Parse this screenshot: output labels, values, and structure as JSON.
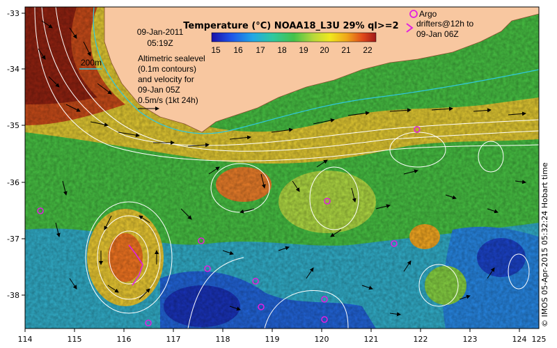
{
  "header": {
    "colorbar_title": "Temperature (°C) NOAA18_L3U 29% ql>=2",
    "colorbar_ticks": [
      "15",
      "16",
      "17",
      "18",
      "19",
      "20",
      "21",
      "22"
    ],
    "colorbar_colors": [
      "#1a10a8",
      "#1f55e8",
      "#22a7e6",
      "#2fc8a0",
      "#44c24a",
      "#b8d83a",
      "#f0e81e",
      "#f0a81a",
      "#e0481a",
      "#a01818"
    ]
  },
  "annotations": {
    "date": "09-Jan-2011",
    "time": "05:19Z",
    "contour_label": "200m",
    "sealevel_lines": [
      "Altimetric sealevel",
      "(0.1m contours)",
      "and velocity for",
      "09-Jan 05Z",
      "0.5m/s (1kt 24h)"
    ],
    "argo_line1": "Argo",
    "argo_line2": "drifters@12h to",
    "argo_line3": "09-Jan 06Z",
    "credit": "© IMOS 05-Apr-2015 05:32:24 Hobart time"
  },
  "axes": {
    "x_ticks": [
      "114",
      "115",
      "116",
      "117",
      "118",
      "119",
      "120",
      "121",
      "122",
      "123",
      "124",
      "125"
    ],
    "y_ticks": [
      "-33",
      "-34",
      "-35",
      "-36",
      "-37",
      "-38"
    ]
  },
  "colors": {
    "land": "#f8c7a0",
    "shelf_contour": "#30c8e0",
    "argo": "#e020e0"
  }
}
